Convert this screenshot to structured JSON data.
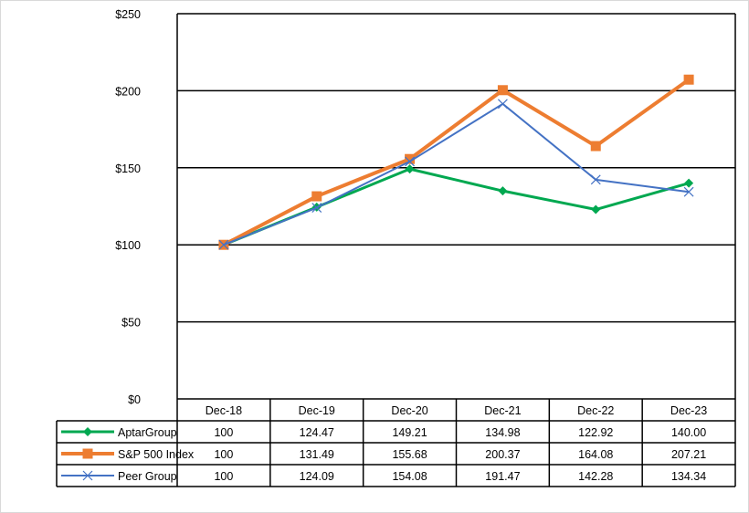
{
  "chart_data": {
    "type": "line",
    "title": "",
    "xlabel": "",
    "ylabel": "",
    "categories": [
      "Dec-18",
      "Dec-19",
      "Dec-20",
      "Dec-21",
      "Dec-22",
      "Dec-23"
    ],
    "ylim": [
      0,
      250
    ],
    "yticks": [
      0,
      50,
      100,
      150,
      200,
      250
    ],
    "ytick_labels": [
      "$0",
      "$50",
      "$100",
      "$150",
      "$200",
      "$250"
    ],
    "grid": true,
    "legend": "data-table-left",
    "series": [
      {
        "name": "AptarGroup",
        "values": [
          100,
          124.47,
          149.21,
          134.98,
          122.92,
          140.0
        ],
        "labels": [
          "100",
          "124.47",
          "149.21",
          "134.98",
          "122.92",
          "140.00"
        ],
        "color": "#00a850",
        "marker": "diamond"
      },
      {
        "name": "S&P 500 Index",
        "values": [
          100,
          131.49,
          155.68,
          200.37,
          164.08,
          207.21
        ],
        "labels": [
          "100",
          "131.49",
          "155.68",
          "200.37",
          "164.08",
          "207.21"
        ],
        "color": "#ed7d31",
        "marker": "square"
      },
      {
        "name": "Peer Group",
        "values": [
          100,
          124.09,
          154.08,
          191.47,
          142.28,
          134.34
        ],
        "labels": [
          "100",
          "124.09",
          "154.08",
          "191.47",
          "142.28",
          "134.34"
        ],
        "color": "#4472c4",
        "marker": "x"
      }
    ]
  }
}
